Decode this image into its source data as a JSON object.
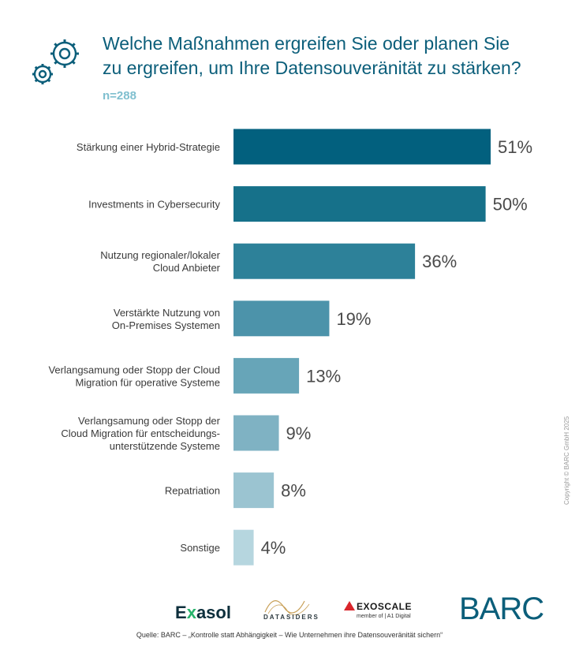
{
  "header": {
    "title_lines": [
      "Welche Maßnahmen ergreifen Sie oder planen Sie",
      "zu ergreifen, um Ihre Datensouveränität zu stärken?"
    ],
    "sample_size": "n=288",
    "icon": "gears-icon"
  },
  "chart_data": {
    "type": "bar",
    "orientation": "horizontal",
    "categories": [
      [
        "Stärkung einer Hybrid-Strategie"
      ],
      [
        "Investments in Cybersecurity"
      ],
      [
        "Nutzung regionaler/lokaler",
        "Cloud Anbieter"
      ],
      [
        "Verstärkte Nutzung von",
        "On-Premises Systemen"
      ],
      [
        "Verlangsamung oder Stopp der Cloud",
        "Migration für operative Systeme"
      ],
      [
        "Verlangsamung oder Stopp der",
        "Cloud Migration für entscheidungs-",
        "unterstützende Systeme"
      ],
      [
        "Repatriation"
      ],
      [
        "Sonstige"
      ]
    ],
    "values": [
      51,
      50,
      36,
      19,
      13,
      9,
      8,
      4
    ],
    "value_labels": [
      "51%",
      "50%",
      "36%",
      "19%",
      "13%",
      "9%",
      "8%",
      "4%"
    ],
    "unit": "%",
    "xlim": [
      0,
      51
    ],
    "grid": false,
    "colors": [
      "#02607e",
      "#16718a",
      "#2d8199",
      "#4c93aa",
      "#67a5b8",
      "#7fb2c3",
      "#9bc4d1",
      "#b6d6df"
    ]
  },
  "side": {
    "copyright": "Copyright © BARC GmbH 2025"
  },
  "logos": {
    "exasol_prefix": "E",
    "exasol_x": "x",
    "exasol_suffix": "asol",
    "datasiders": "DATASIDERS",
    "exoscale": "EXOSCALE",
    "exoscale_sub": "member of | A1 Digital",
    "barc": "BARC"
  },
  "footer": {
    "source": "Quelle: BARC – „Kontrolle statt Abhängigkeit – Wie Unternehmen ihre Datensouveränität sichern“"
  }
}
